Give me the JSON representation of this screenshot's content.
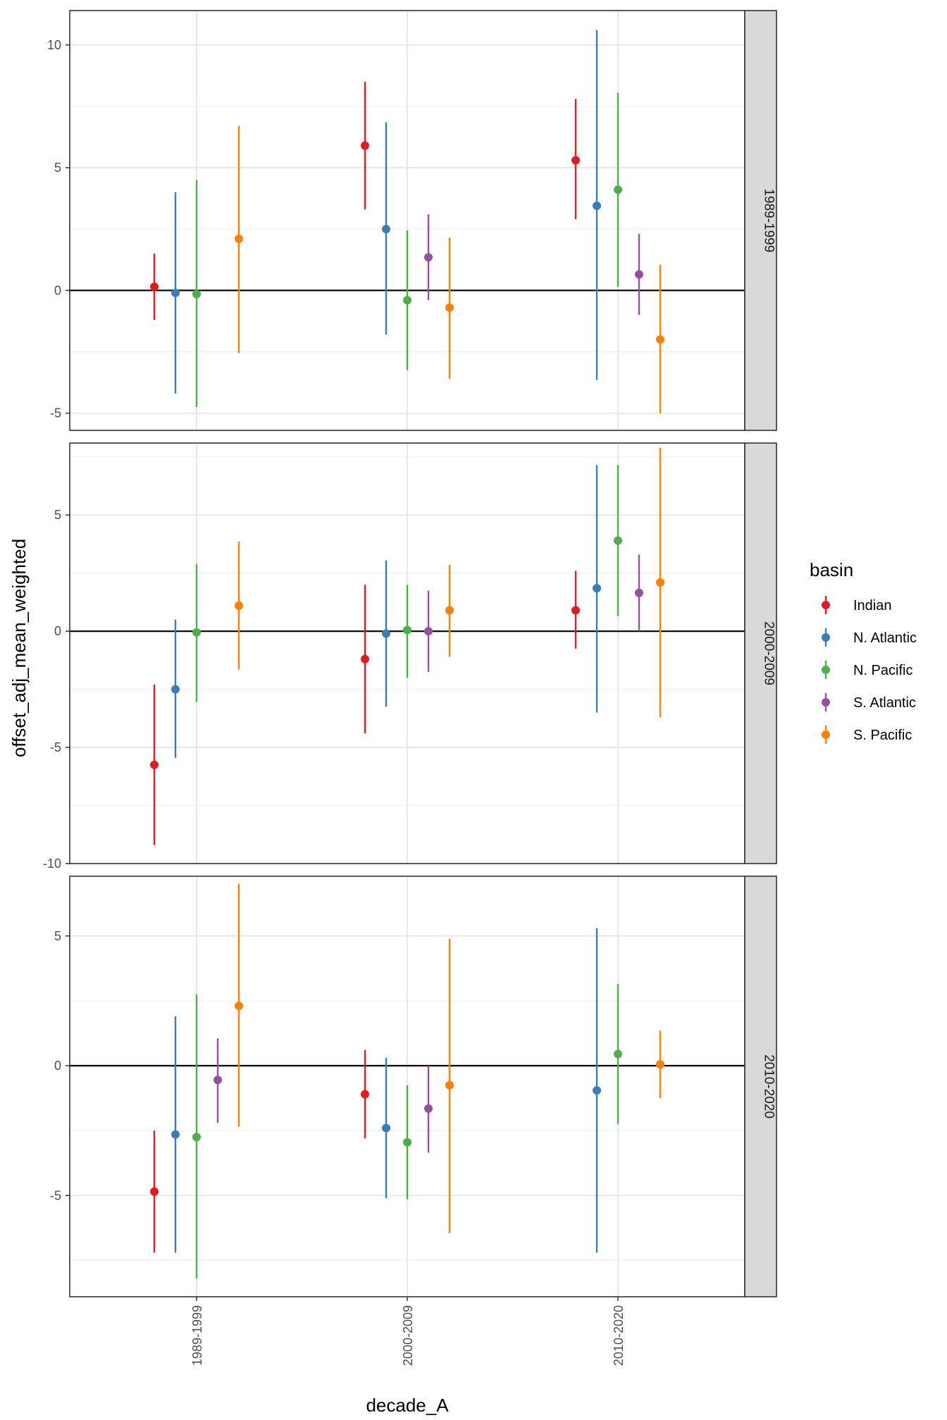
{
  "chart_data": {
    "type": "pointrange",
    "xlabel": "decade_A",
    "ylabel": "offset_adj_mean_weighted",
    "categories": [
      "1989-1999",
      "2000-2009",
      "2010-2020"
    ],
    "legend": {
      "title": "basin",
      "position": "right",
      "entries": [
        {
          "name": "Indian",
          "color": "#e41a1c"
        },
        {
          "name": "N. Atlantic",
          "color": "#377eb8"
        },
        {
          "name": "N. Pacific",
          "color": "#4daf4a"
        },
        {
          "name": "S. Atlantic",
          "color": "#984ea3"
        },
        {
          "name": "S. Pacific",
          "color": "#ff7f00"
        }
      ]
    },
    "reference_line": 0,
    "panels": [
      {
        "strip": "1989-1999",
        "ylim": [
          -5.7,
          11.4
        ],
        "yticks": [
          -5,
          0,
          5,
          10
        ],
        "ytick_labels": [
          "-5",
          "0",
          "5",
          "10"
        ],
        "series": [
          {
            "name": "Indian",
            "points": [
              {
                "x": "1989-1999",
                "y": 0.15,
                "lo": -1.2,
                "hi": 1.5
              },
              {
                "x": "2000-2009",
                "y": 5.9,
                "lo": 3.3,
                "hi": 8.5
              },
              {
                "x": "2010-2020",
                "y": 5.3,
                "lo": 2.9,
                "hi": 7.8
              }
            ]
          },
          {
            "name": "N. Atlantic",
            "points": [
              {
                "x": "1989-1999",
                "y": -0.1,
                "lo": -4.2,
                "hi": 4.0
              },
              {
                "x": "2000-2009",
                "y": 2.5,
                "lo": -1.8,
                "hi": 6.85
              },
              {
                "x": "2010-2020",
                "y": 3.45,
                "lo": -3.65,
                "hi": 10.6
              }
            ]
          },
          {
            "name": "N. Pacific",
            "points": [
              {
                "x": "1989-1999",
                "y": -0.15,
                "lo": -4.75,
                "hi": 4.5
              },
              {
                "x": "2000-2009",
                "y": -0.4,
                "lo": -3.25,
                "hi": 2.45
              },
              {
                "x": "2010-2020",
                "y": 4.1,
                "lo": 0.15,
                "hi": 8.05
              }
            ]
          },
          {
            "name": "S. Atlantic",
            "points": [
              {
                "x": "2000-2009",
                "y": 1.35,
                "lo": -0.4,
                "hi": 3.1
              },
              {
                "x": "2010-2020",
                "y": 0.65,
                "lo": -1.0,
                "hi": 2.3
              }
            ]
          },
          {
            "name": "S. Pacific",
            "points": [
              {
                "x": "1989-1999",
                "y": 2.1,
                "lo": -2.55,
                "hi": 6.7
              },
              {
                "x": "2000-2009",
                "y": -0.7,
                "lo": -3.6,
                "hi": 2.15
              },
              {
                "x": "2010-2020",
                "y": -2.0,
                "lo": -5.0,
                "hi": 1.05
              }
            ]
          }
        ]
      },
      {
        "strip": "2000-2009",
        "ylim": [
          -10.0,
          8.1
        ],
        "yticks": [
          -10,
          -5,
          0,
          5
        ],
        "ytick_labels": [
          "-10",
          "-5",
          "0",
          "5"
        ],
        "series": [
          {
            "name": "Indian",
            "points": [
              {
                "x": "1989-1999",
                "y": -5.75,
                "lo": -9.2,
                "hi": -2.3
              },
              {
                "x": "2000-2009",
                "y": -1.2,
                "lo": -4.4,
                "hi": 2.0
              },
              {
                "x": "2010-2020",
                "y": 0.9,
                "lo": -0.75,
                "hi": 2.6
              }
            ]
          },
          {
            "name": "N. Atlantic",
            "points": [
              {
                "x": "1989-1999",
                "y": -2.5,
                "lo": -5.45,
                "hi": 0.5
              },
              {
                "x": "2000-2009",
                "y": -0.1,
                "lo": -3.25,
                "hi": 3.05
              },
              {
                "x": "2010-2020",
                "y": 1.85,
                "lo": -3.5,
                "hi": 7.15
              }
            ]
          },
          {
            "name": "N. Pacific",
            "points": [
              {
                "x": "1989-1999",
                "y": -0.05,
                "lo": -3.05,
                "hi": 2.9
              },
              {
                "x": "2000-2009",
                "y": 0.05,
                "lo": -2.0,
                "hi": 2.0
              },
              {
                "x": "2010-2020",
                "y": 3.9,
                "lo": 0.65,
                "hi": 7.15
              }
            ]
          },
          {
            "name": "S. Atlantic",
            "points": [
              {
                "x": "2000-2009",
                "y": 0.0,
                "lo": -1.75,
                "hi": 1.75
              },
              {
                "x": "2010-2020",
                "y": 1.65,
                "lo": 0.0,
                "hi": 3.3
              }
            ]
          },
          {
            "name": "S. Pacific",
            "points": [
              {
                "x": "1989-1999",
                "y": 1.1,
                "lo": -1.65,
                "hi": 3.85
              },
              {
                "x": "2000-2009",
                "y": 0.9,
                "lo": -1.1,
                "hi": 2.85
              },
              {
                "x": "2010-2020",
                "y": 2.1,
                "lo": -3.7,
                "hi": 7.9
              }
            ]
          }
        ]
      },
      {
        "strip": "2010-2020",
        "ylim": [
          -8.9,
          7.3
        ],
        "yticks": [
          -5,
          0,
          5
        ],
        "ytick_labels": [
          "-5",
          "0",
          "5"
        ],
        "series": [
          {
            "name": "Indian",
            "points": [
              {
                "x": "1989-1999",
                "y": -4.85,
                "lo": -7.2,
                "hi": -2.5
              },
              {
                "x": "2000-2009",
                "y": -1.1,
                "lo": -2.8,
                "hi": 0.6
              }
            ]
          },
          {
            "name": "N. Atlantic",
            "points": [
              {
                "x": "1989-1999",
                "y": -2.65,
                "lo": -7.2,
                "hi": 1.9
              },
              {
                "x": "2000-2009",
                "y": -2.4,
                "lo": -5.1,
                "hi": 0.3
              },
              {
                "x": "2010-2020",
                "y": -0.95,
                "lo": -7.2,
                "hi": 5.3
              }
            ]
          },
          {
            "name": "N. Pacific",
            "points": [
              {
                "x": "1989-1999",
                "y": -2.75,
                "lo": -8.2,
                "hi": 2.75
              },
              {
                "x": "2000-2009",
                "y": -2.95,
                "lo": -5.15,
                "hi": -0.75
              },
              {
                "x": "2010-2020",
                "y": 0.45,
                "lo": -2.25,
                "hi": 3.15
              }
            ]
          },
          {
            "name": "S. Atlantic",
            "points": [
              {
                "x": "1989-1999",
                "y": -0.55,
                "lo": -2.2,
                "hi": 1.05
              },
              {
                "x": "2000-2009",
                "y": -1.65,
                "lo": -3.35,
                "hi": 0.0
              }
            ]
          },
          {
            "name": "S. Pacific",
            "points": [
              {
                "x": "1989-1999",
                "y": 2.3,
                "lo": -2.35,
                "hi": 7.0
              },
              {
                "x": "2000-2009",
                "y": -0.75,
                "lo": -6.45,
                "hi": 4.9
              },
              {
                "x": "2010-2020",
                "y": 0.05,
                "lo": -1.25,
                "hi": 1.35
              }
            ]
          }
        ]
      }
    ]
  }
}
